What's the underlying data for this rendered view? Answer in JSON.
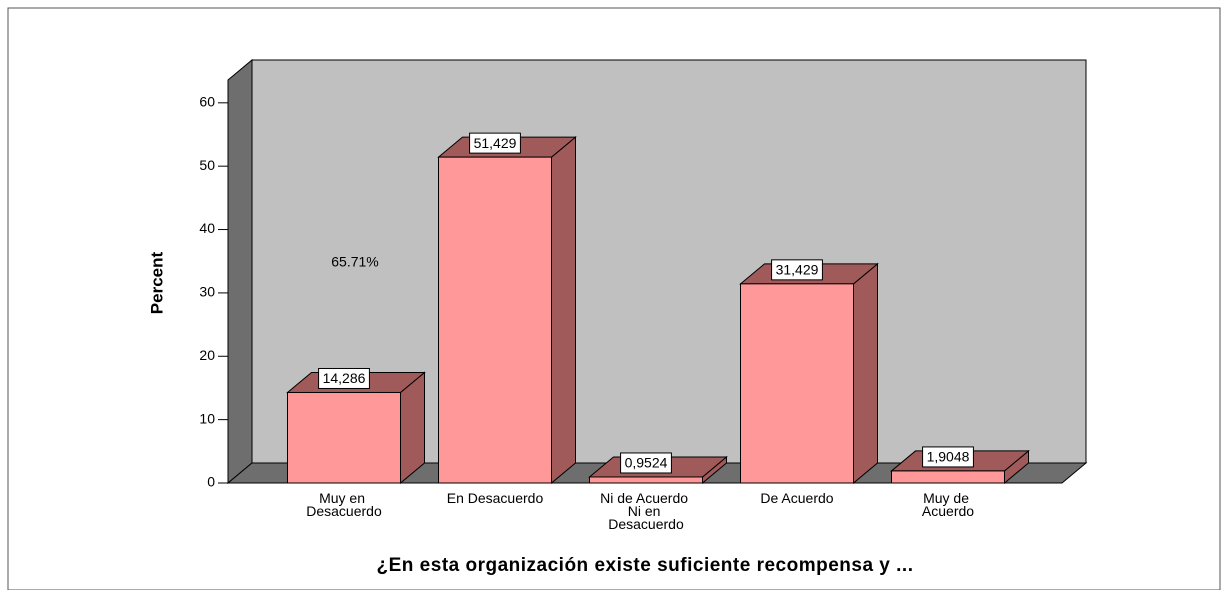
{
  "chart_data": {
    "type": "bar",
    "categories": [
      "Muy en Desacuerdo",
      "En Desacuerdo",
      "Ni de Acuerdo Ni en Desacuerdo",
      "De Acuerdo",
      "Muy de Acuerdo"
    ],
    "values": [
      14.286,
      51.429,
      0.9524,
      31.429,
      1.9048
    ],
    "value_labels": [
      "14,286",
      "51,429",
      "0,9524",
      "31,429",
      "1,9048"
    ],
    "color": "#ff9999",
    "ylabel": "Percent",
    "xlabel": "¿En esta organización existe suficiente recompensa y ...",
    "annotation": "65.71%",
    "ylim": [
      0,
      63.6
    ],
    "yticks": [
      0,
      10,
      20,
      30,
      40,
      50,
      60
    ]
  }
}
